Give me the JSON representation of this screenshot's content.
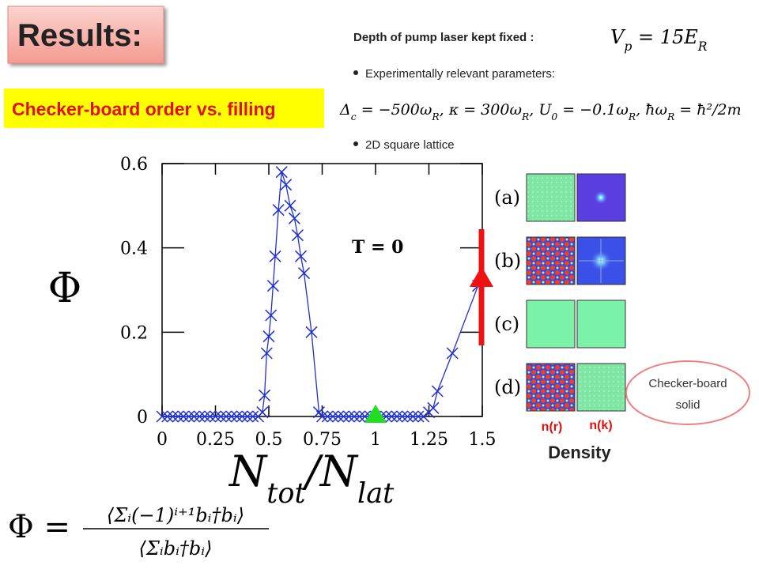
{
  "header": {
    "title": "Results:",
    "subtitle": "Checker-board order vs. filling"
  },
  "notes": {
    "pump_text": "Depth of pump laser kept fixed :",
    "pump_formula": [
      "V",
      "p",
      " = 15E",
      "R"
    ],
    "bullets": [
      "Experimentally relevant parameters:",
      "2D square lattice"
    ],
    "param_formula": [
      "Δ",
      "c",
      " = −500ω",
      "R",
      ", κ = 300ω",
      "R",
      ", U",
      "0",
      " = −0.1ω",
      "R",
      ", ħω",
      "R",
      " = ħ²/2m"
    ]
  },
  "chart_data": {
    "type": "line",
    "color": "#1f2fd6",
    "x": [
      0,
      0.025,
      0.05,
      0.075,
      0.1,
      0.125,
      0.15,
      0.175,
      0.2,
      0.225,
      0.25,
      0.275,
      0.3,
      0.325,
      0.35,
      0.375,
      0.4,
      0.425,
      0.45,
      0.47,
      0.48,
      0.49,
      0.5,
      0.51,
      0.52,
      0.53,
      0.545,
      0.56,
      0.58,
      0.6,
      0.62,
      0.635,
      0.65,
      0.665,
      0.7,
      0.735,
      0.75,
      0.775,
      0.8,
      0.825,
      0.85,
      0.875,
      0.9,
      0.925,
      0.95,
      0.975,
      1,
      1.025,
      1.05,
      1.075,
      1.1,
      1.125,
      1.15,
      1.175,
      1.2,
      1.225,
      1.25,
      1.27,
      1.29,
      1.36,
      1.48
    ],
    "values": [
      0,
      0,
      0,
      0,
      0,
      0,
      0,
      0,
      0,
      0,
      0,
      0,
      0,
      0,
      0,
      0,
      0,
      0,
      0,
      0.01,
      0.05,
      0.15,
      0.19,
      0.24,
      0.31,
      0.38,
      0.49,
      0.58,
      0.55,
      0.5,
      0.47,
      0.43,
      0.38,
      0.34,
      0.2,
      0.01,
      0,
      0,
      0,
      0,
      0,
      0,
      0,
      0,
      0,
      0,
      0,
      0,
      0,
      0,
      0,
      0,
      0,
      0,
      0,
      0,
      0.01,
      0.02,
      0.06,
      0.15,
      0.31
    ],
    "xlim": [
      0,
      1.5
    ],
    "ylim": [
      0,
      0.6
    ],
    "xticks": [
      0,
      0.25,
      0.5,
      0.75,
      1,
      1.25,
      1.5
    ],
    "yticks": [
      0,
      0.2,
      0.4,
      0.6
    ],
    "x_label": [
      "N",
      "tot",
      "/N",
      "lat"
    ],
    "y_label": "Φ",
    "annotation": "T = 0"
  },
  "panels": {
    "labels": [
      "(a)",
      "(b)",
      "(c)",
      "(d)"
    ],
    "column_labels": [
      "n(r)",
      "n(k)"
    ],
    "caption": "Density",
    "callout": [
      "Checker-board",
      "solid"
    ]
  },
  "formula": {
    "lhs": "Φ =",
    "numerator": "⟨Σᵢ(−1)ⁱ⁺¹bᵢ†bᵢ⟩",
    "denominator": "⟨Σᵢbᵢ†bᵢ⟩"
  }
}
